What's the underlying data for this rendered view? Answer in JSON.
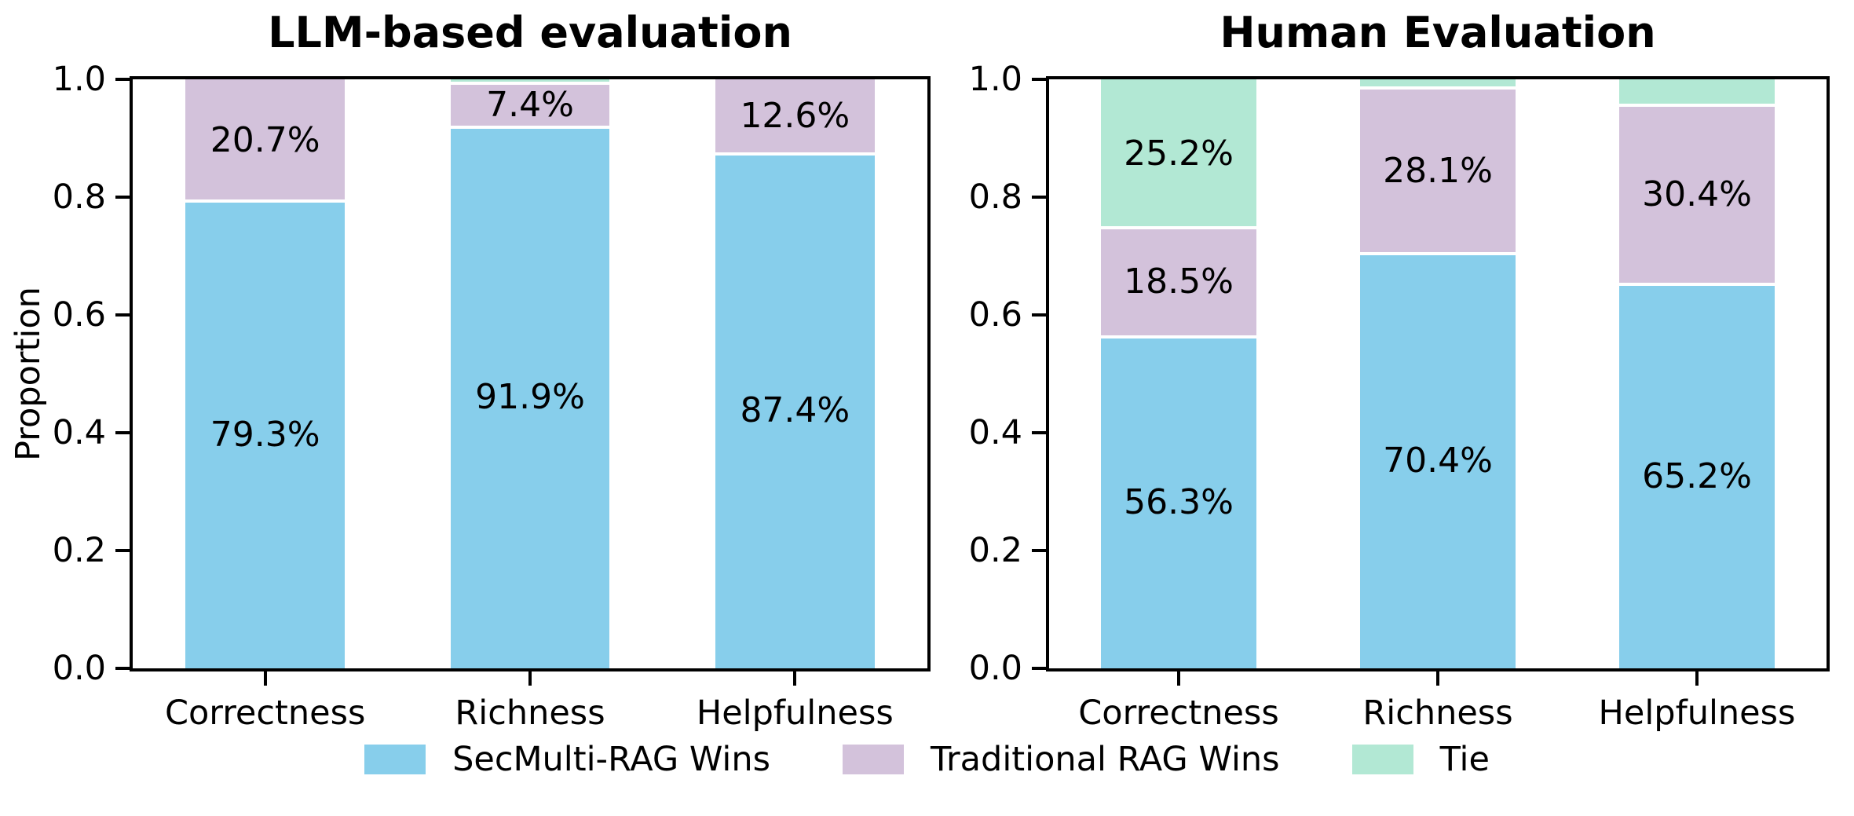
{
  "figure": {
    "background": "#ffffff"
  },
  "colors": {
    "secmulti_blue": "#87CEEB",
    "traditional_purple": "#D3C2DB",
    "tie_green": "#B2E8D4",
    "spine_black": "#000000",
    "divider_white": "#ffffff"
  },
  "chart_data": [
    {
      "type": "bar",
      "stacked": true,
      "title": "LLM-based evaluation",
      "ylabel": "Proportion",
      "categories": [
        "Correctness",
        "Richness",
        "Helpfulness"
      ],
      "yticks": [
        0.0,
        0.2,
        0.4,
        0.6,
        0.8,
        1.0
      ],
      "ytick_labels": [
        "0.0",
        "0.2",
        "0.4",
        "0.6",
        "0.8",
        "1.0"
      ],
      "ylim": [
        0,
        1
      ],
      "bar_width_fraction": 0.6,
      "grid": false,
      "series": [
        {
          "name": "SecMulti-RAG Wins",
          "color": "#87CEEB",
          "values": [
            0.793,
            0.919,
            0.874
          ],
          "labels": [
            "79.3%",
            "91.9%",
            "87.4%"
          ]
        },
        {
          "name": "Traditional RAG Wins",
          "color": "#D3C2DB",
          "values": [
            0.207,
            0.074,
            0.126
          ],
          "labels": [
            "20.7%",
            "7.4%",
            "12.6%"
          ]
        },
        {
          "name": "Tie",
          "color": "#B2E8D4",
          "values": [
            0.0,
            0.007,
            0.0
          ],
          "labels": [
            null,
            null,
            null
          ]
        }
      ]
    },
    {
      "type": "bar",
      "stacked": true,
      "title": "Human Evaluation",
      "ylabel": "",
      "categories": [
        "Correctness",
        "Richness",
        "Helpfulness"
      ],
      "yticks": [
        0.0,
        0.2,
        0.4,
        0.6,
        0.8,
        1.0
      ],
      "ytick_labels": [
        "0.0",
        "0.2",
        "0.4",
        "0.6",
        "0.8",
        "1.0"
      ],
      "ylim": [
        0,
        1
      ],
      "bar_width_fraction": 0.6,
      "grid": false,
      "series": [
        {
          "name": "SecMulti-RAG Wins",
          "color": "#87CEEB",
          "values": [
            0.563,
            0.704,
            0.652
          ],
          "labels": [
            "56.3%",
            "70.4%",
            "65.2%"
          ]
        },
        {
          "name": "Traditional RAG Wins",
          "color": "#D3C2DB",
          "values": [
            0.185,
            0.281,
            0.304
          ],
          "labels": [
            "18.5%",
            "28.1%",
            "30.4%"
          ]
        },
        {
          "name": "Tie",
          "color": "#B2E8D4",
          "values": [
            0.252,
            0.015,
            0.044
          ],
          "labels": [
            "25.2%",
            null,
            null
          ]
        }
      ]
    }
  ],
  "legend": {
    "items": [
      {
        "label": "SecMulti-RAG Wins",
        "color": "#87CEEB"
      },
      {
        "label": "Traditional RAG Wins",
        "color": "#D3C2DB"
      },
      {
        "label": "Tie",
        "color": "#B2E8D4"
      }
    ]
  }
}
